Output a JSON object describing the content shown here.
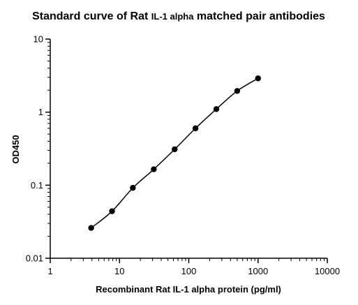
{
  "chart_data": {
    "type": "scatter",
    "title": {
      "part1": "Standard curve of Rat ",
      "part2": "IL-1 alpha",
      "part3": " matched pair antibodies"
    },
    "xlabel": "Recombinant Rat IL-1 alpha protein (pg/ml)",
    "ylabel": "OD450",
    "x_scale": "log",
    "y_scale": "log",
    "xlim": [
      1,
      10000
    ],
    "ylim": [
      0.01,
      10
    ],
    "x_ticks": [
      {
        "value": 1,
        "label": "1"
      },
      {
        "value": 10,
        "label": "10"
      },
      {
        "value": 100,
        "label": "100"
      },
      {
        "value": 1000,
        "label": "1000"
      },
      {
        "value": 10000,
        "label": "10000"
      }
    ],
    "y_ticks": [
      {
        "value": 0.01,
        "label": "0.01"
      },
      {
        "value": 0.1,
        "label": "0.1"
      },
      {
        "value": 1,
        "label": "1"
      },
      {
        "value": 10,
        "label": "10"
      }
    ],
    "grid": false,
    "fit_line": true,
    "series": [
      {
        "x": [
          3.9,
          7.8,
          15.6,
          31.25,
          62.5,
          125,
          250,
          500,
          1000
        ],
        "y": [
          0.026,
          0.044,
          0.092,
          0.165,
          0.31,
          0.6,
          1.1,
          1.95,
          2.9
        ]
      }
    ],
    "colors": {
      "points": "#000000",
      "line": "#000000",
      "axes": "#000000"
    }
  }
}
